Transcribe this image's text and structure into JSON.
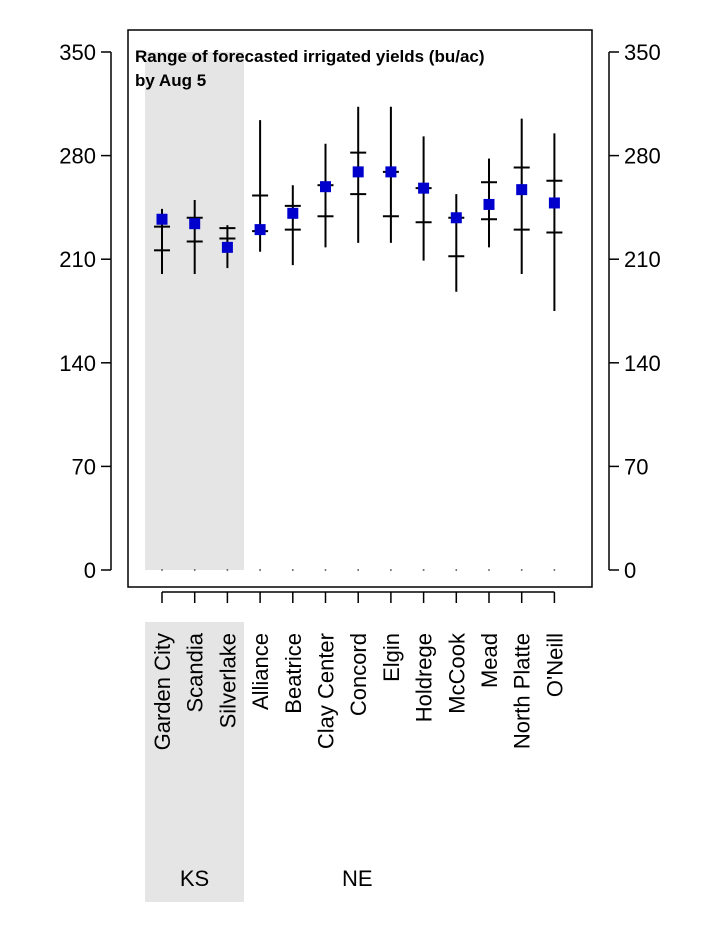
{
  "chart_data": {
    "type": "range",
    "title_lines": [
      "Range of forecasted irrigated yields (bu/ac)",
      "by Aug 5"
    ],
    "ylim": [
      0,
      350
    ],
    "yticks": [
      0,
      70,
      140,
      210,
      280,
      350
    ],
    "ytick_labels": [
      "0",
      "70",
      "140",
      "210",
      "280",
      "350"
    ],
    "grid": false,
    "marker_color": "#0000CC",
    "shade_color": "#E5E5E5",
    "groups": [
      {
        "label": "KS",
        "categories": [
          "Garden City",
          "Scandia",
          "Silverlake"
        ],
        "shaded": true
      },
      {
        "label": "NE",
        "categories": [
          "Alliance",
          "Beatrice",
          "Clay Center",
          "Concord",
          "Elgin",
          "Holdrege",
          "McCook",
          "Mead",
          "North Platte",
          "O'Neill"
        ],
        "shaded": false
      }
    ],
    "categories": [
      "Garden City",
      "Scandia",
      "Silverlake",
      "Alliance",
      "Beatrice",
      "Clay Center",
      "Concord",
      "Elgin",
      "Holdrege",
      "McCook",
      "Mead",
      "North Platte",
      "O'Neill"
    ],
    "series": [
      {
        "key": "min",
        "values": [
          200,
          200,
          204,
          215,
          206,
          218,
          221,
          221,
          209,
          188,
          218,
          200,
          175
        ]
      },
      {
        "key": "q1",
        "values": [
          216,
          222,
          224,
          229,
          230,
          239,
          254,
          239,
          235,
          212,
          237,
          230,
          228
        ]
      },
      {
        "key": "q3",
        "values": [
          232,
          238,
          231,
          253,
          246,
          260,
          282,
          269,
          258,
          238,
          262,
          272,
          263
        ]
      },
      {
        "key": "max",
        "values": [
          244,
          250,
          233,
          304,
          260,
          288,
          313,
          313,
          293,
          254,
          278,
          305,
          295
        ]
      },
      {
        "key": "forecast",
        "values": [
          237,
          234,
          218,
          230,
          241,
          259,
          269,
          269,
          258,
          238,
          247,
          257,
          248
        ]
      }
    ]
  }
}
